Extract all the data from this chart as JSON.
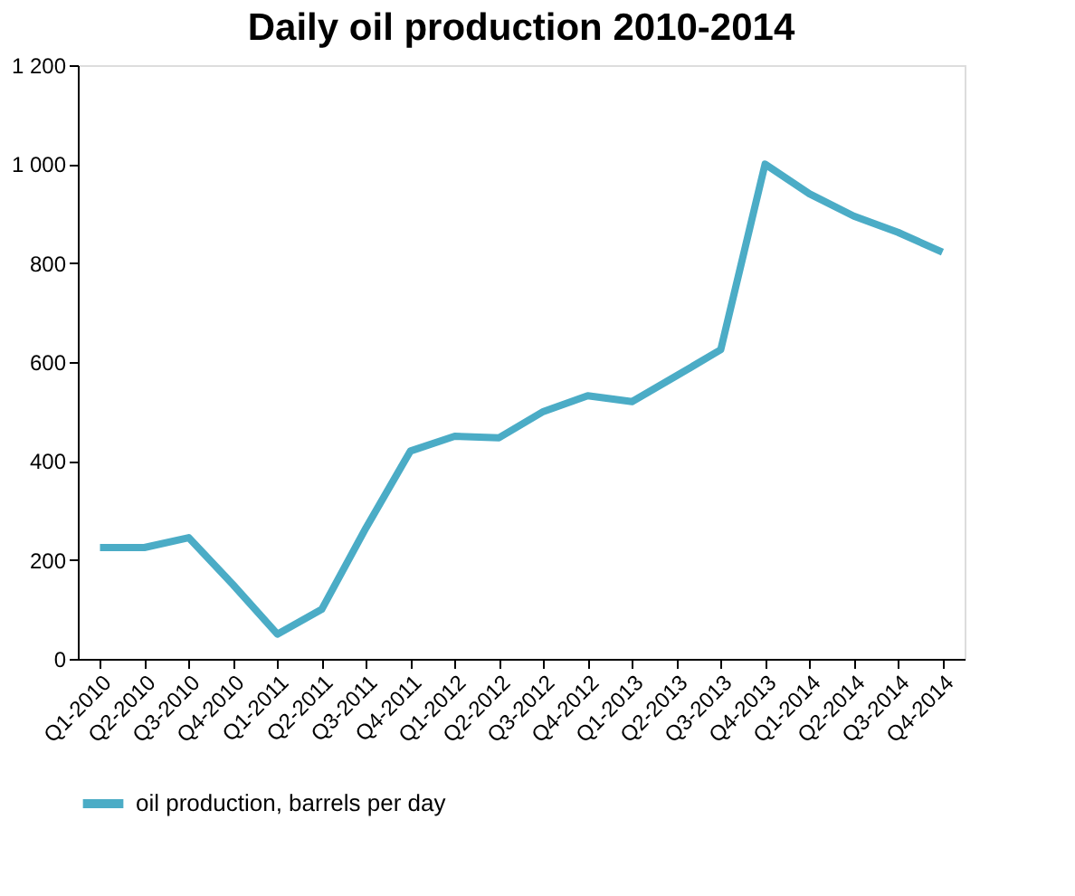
{
  "chart_data": {
    "type": "line",
    "title": "Daily oil production 2010-2014",
    "categories": [
      "Q1-2010",
      "Q2-2010",
      "Q3-2010",
      "Q4-2010",
      "Q1-2011",
      "Q2-2011",
      "Q3-2011",
      "Q4-2011",
      "Q1-2012",
      "Q2-2012",
      "Q3-2012",
      "Q4-2012",
      "Q1-2013",
      "Q2-2013",
      "Q3-2013",
      "Q4-2013",
      "Q1-2014",
      "Q2-2014",
      "Q3-2014",
      "Q4-2014"
    ],
    "series": [
      {
        "name": "oil production, barrels per day",
        "color": "#4bacc6",
        "values": [
          225,
          225,
          245,
          150,
          50,
          100,
          265,
          420,
          450,
          447,
          500,
          532,
          520,
          572,
          625,
          1000,
          940,
          895,
          862,
          822
        ]
      }
    ],
    "ylim": [
      0,
      1200
    ],
    "yticks": [
      0,
      200,
      400,
      600,
      800,
      {
        "value": 1000,
        "label": "1 000"
      },
      {
        "value": 1200,
        "label": "1 200"
      }
    ],
    "grid": false,
    "legend": "bottom",
    "marker": "none",
    "line_style": "solid"
  }
}
